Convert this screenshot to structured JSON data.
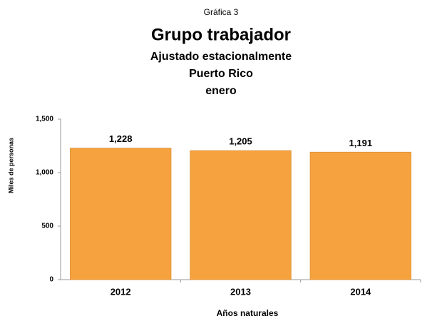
{
  "chart_data": {
    "type": "bar",
    "label": "Gráfica 3",
    "title": "Grupo trabajador",
    "subtitle": [
      "Ajustado estacionalmente",
      "Puerto Rico",
      "enero"
    ],
    "x_label": "Años naturales",
    "y_label": "Miles de personas",
    "categories": [
      "2012",
      "2013",
      "2014"
    ],
    "values": [
      1228,
      1205,
      1191
    ],
    "value_labels": [
      "1,228",
      "1,205",
      "1,191"
    ],
    "color": "#f6a33f",
    "ylim": [
      0,
      1500
    ],
    "yticks": [
      0,
      500,
      {
        "value": 1000,
        "label": "1,000"
      },
      {
        "value": 1500,
        "label": "1,500"
      }
    ],
    "grid": false
  }
}
